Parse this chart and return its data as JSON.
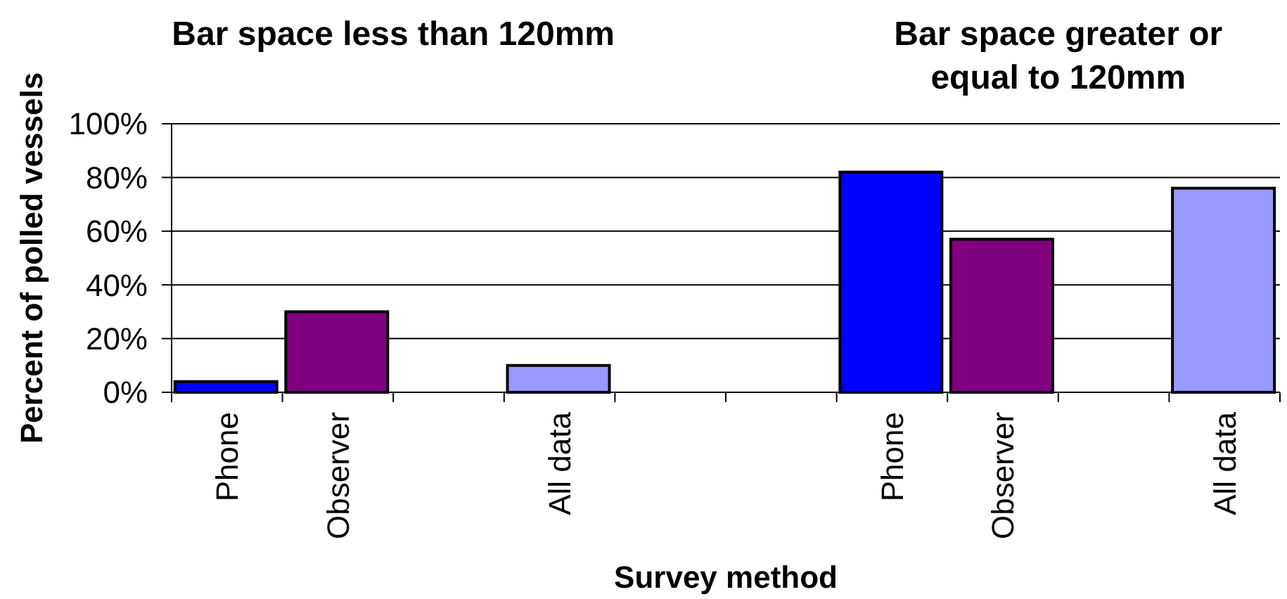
{
  "chart_data": {
    "type": "bar",
    "annotations": [
      "Bar space less than 120mm",
      "Bar space greater or equal to 120mm"
    ],
    "xlabel": "Survey method",
    "ylabel": "Percent of polled vessels",
    "categories": [
      "Phone",
      "Observer",
      null,
      "All data",
      null,
      null,
      "Phone",
      "Observer",
      null,
      "All data"
    ],
    "values": [
      4,
      30,
      null,
      10,
      null,
      null,
      82,
      57,
      null,
      76
    ],
    "colors": [
      "#0000ff",
      "#800080",
      null,
      "#9999ff",
      null,
      null,
      "#0000ff",
      "#800080",
      null,
      "#9999ff"
    ],
    "ylim": [
      0,
      100
    ],
    "yticks": [
      {
        "value": 0,
        "label": "0%"
      },
      {
        "value": 20,
        "label": "20%"
      },
      {
        "value": 40,
        "label": "40%"
      },
      {
        "value": 60,
        "label": "60%"
      },
      {
        "value": 80,
        "label": "80%"
      },
      {
        "value": 100,
        "label": "100%"
      }
    ],
    "grid": "y"
  }
}
